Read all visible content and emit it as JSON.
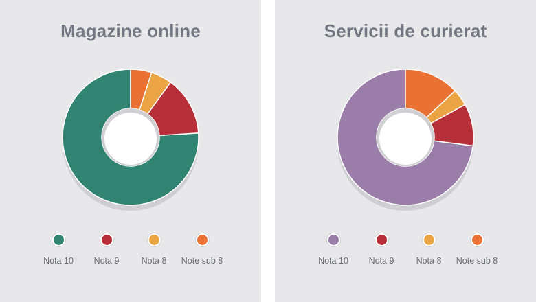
{
  "chart_data": [
    {
      "type": "pie",
      "title": "Magazine online",
      "categories": [
        "Nota 10",
        "Nota 9",
        "Nota 8",
        "Note sub 8"
      ],
      "values": [
        76,
        14,
        5,
        5
      ],
      "colors": [
        "#328472",
        "#b73039",
        "#eba444",
        "#e97133"
      ],
      "legend_position": "bottom"
    },
    {
      "type": "pie",
      "title": "Servicii de curierat",
      "categories": [
        "Nota 10",
        "Nota 9",
        "Nota 8",
        "Note sub 8"
      ],
      "values": [
        73,
        10,
        4,
        13
      ],
      "colors": [
        "#9a7da8",
        "#b73039",
        "#eba444",
        "#e97133"
      ],
      "legend_position": "bottom"
    }
  ]
}
